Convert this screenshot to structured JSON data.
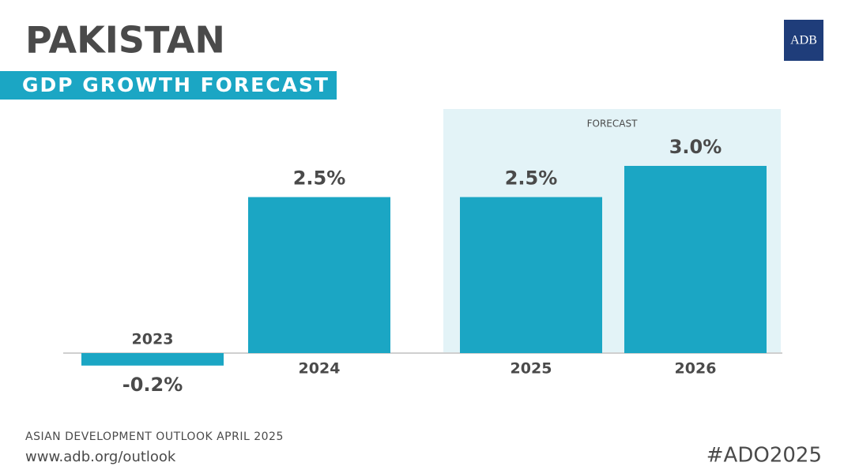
{
  "chart_data": {
    "type": "bar",
    "title": "PAKISTAN",
    "subtitle": "GDP GROWTH FORECAST",
    "categories": [
      "2023",
      "2024",
      "2025",
      "2026"
    ],
    "values": [
      -0.2,
      2.5,
      2.5,
      3.0
    ],
    "value_labels": [
      "-0.2%",
      "2.5%",
      "2.5%",
      "3.0%"
    ],
    "color": "#1ba6c4",
    "annotations": [
      {
        "text": "FORECAST",
        "from": "2025",
        "to": "2026"
      }
    ],
    "source": "ASIAN DEVELOPMENT OUTLOOK APRIL 2025",
    "url": "www.adb.org/outlook",
    "hashtag": "#ADO2025",
    "logo": "ADB"
  }
}
